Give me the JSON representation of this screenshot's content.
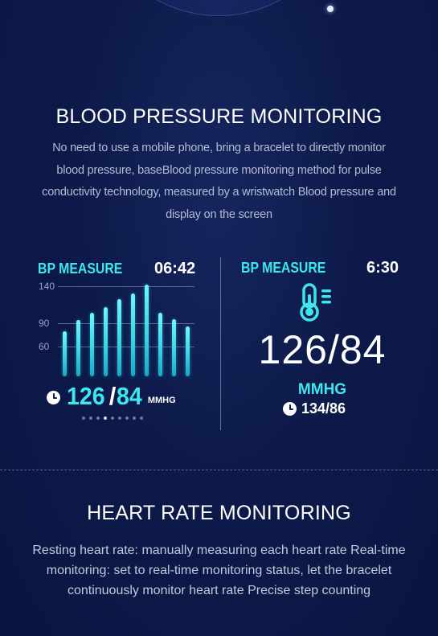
{
  "bp_section": {
    "title": "BLOOD PRESSURE MONITORING",
    "description": "No need to use a mobile phone, bring a bracelet to directly monitor blood pressure, baseBlood pressure monitoring method for pulse conductivity technology, measured by a wristwatch Blood pressure and display on the screen"
  },
  "left_panel": {
    "label": "BP MEASURE",
    "time": "06:42",
    "axis_labels": [
      "140",
      "90",
      "60"
    ],
    "systolic": "126",
    "separator": "/",
    "diastolic": "84",
    "unit": "MMHG",
    "page_count": 9,
    "active_page": 3
  },
  "chart_data": {
    "type": "bar",
    "title": "",
    "ylabel": "",
    "xlabel": "",
    "yticks": [
      140,
      90,
      60
    ],
    "ylim": [
      20,
      148
    ],
    "values": [
      80,
      95,
      104,
      112,
      122,
      130,
      142,
      104,
      96,
      86
    ],
    "colors": {
      "bar": "#3de7ee"
    }
  },
  "right_panel": {
    "label": "BP MEASURE",
    "time": "6:30",
    "reading": "126/84",
    "unit": "MMHG",
    "previous": "134/86"
  },
  "hr_section": {
    "title": "HEART RATE MONITORING",
    "description": "Resting heart rate: manually measuring each heart rate Real-time monitoring: set to real-time monitoring status, let the bracelet continuously monitor heart rate Precise step counting"
  },
  "icons": {
    "clock": "clock-icon",
    "thermometer": "thermometer-icon"
  },
  "colors": {
    "accent": "#3de7ee",
    "background": "#0d1a4a"
  }
}
